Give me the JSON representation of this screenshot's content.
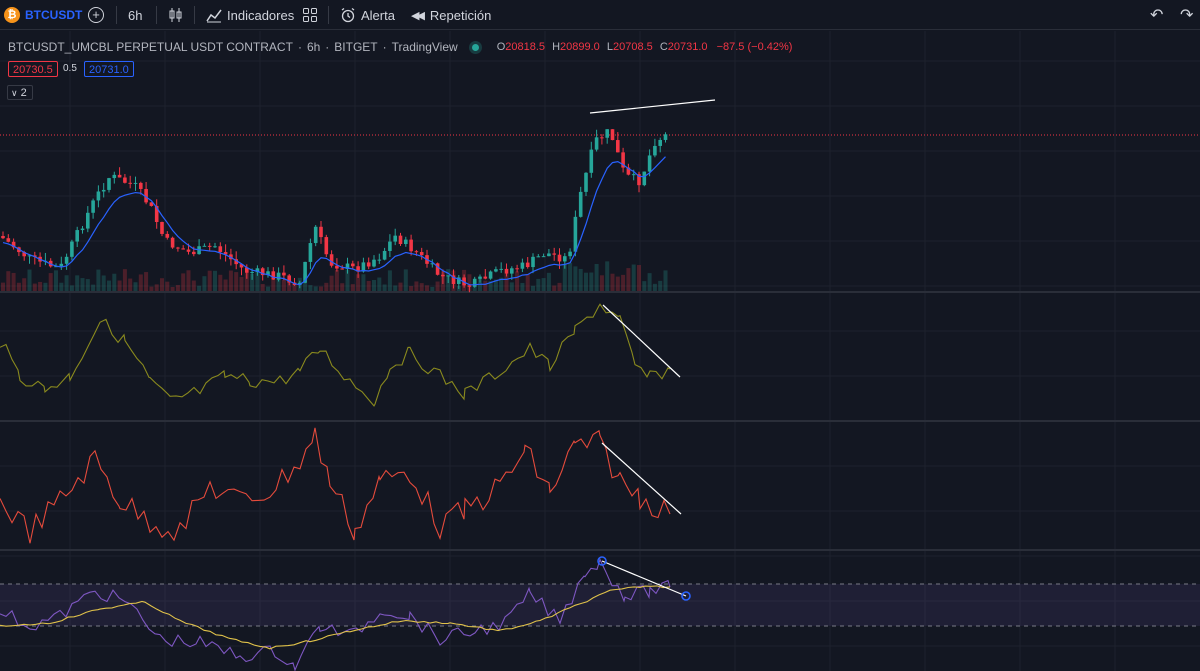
{
  "toolbar": {
    "symbol": "BTCUSDT",
    "interval": "6h",
    "indicators_label": "Indicadores",
    "alert_label": "Alerta",
    "replay_label": "Repetición"
  },
  "legend": {
    "symbol_full": "BTCUSDT_UMCBL PERPETUAL USDT CONTRACT",
    "interval": "6h",
    "exchange": "BITGET",
    "source": "TradingView",
    "open_key": "O",
    "open": "20818.5",
    "high_key": "H",
    "high": "20899.0",
    "low_key": "L",
    "low": "20708.5",
    "close_key": "C",
    "close": "20731.0",
    "change": "−87.5 (−0.42%)"
  },
  "price_boxes": {
    "bid": "20730.5",
    "spread": "0.5",
    "ask": "20731.0"
  },
  "collapse_indicators": {
    "count": "2"
  },
  "colors": {
    "background": "#131722",
    "up": "#26a69a",
    "down": "#f23645",
    "ma_line": "#2962ff",
    "pane2_line": "#8a8a1e",
    "pane3_line": "#e54b3c",
    "pane4_line": "#7e57c2",
    "pane4_signal": "#e0c24a",
    "trendline": "#ffffff"
  }
}
